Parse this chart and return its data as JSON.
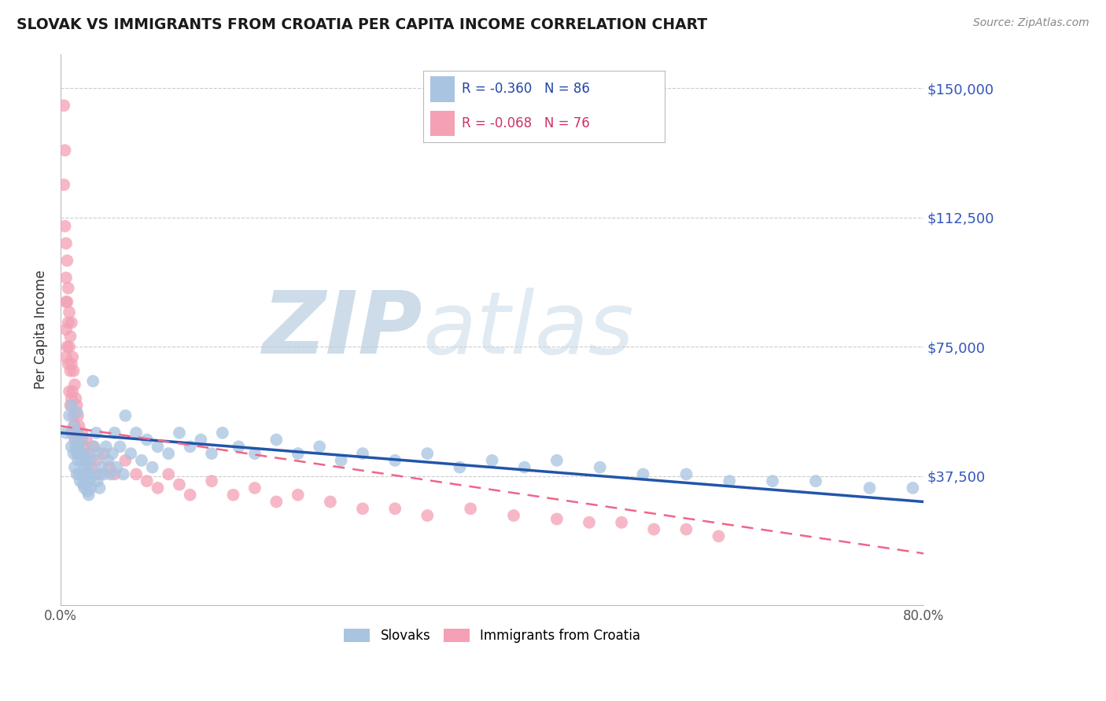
{
  "title": "SLOVAK VS IMMIGRANTS FROM CROATIA PER CAPITA INCOME CORRELATION CHART",
  "source": "Source: ZipAtlas.com",
  "ylabel": "Per Capita Income",
  "xmin": 0.0,
  "xmax": 0.8,
  "ymin": 0,
  "ymax": 160000,
  "yticks": [
    0,
    37500,
    75000,
    112500,
    150000
  ],
  "ytick_labels": [
    "",
    "$37,500",
    "$75,000",
    "$112,500",
    "$150,000"
  ],
  "xticks": [
    0.0,
    0.1,
    0.2,
    0.3,
    0.4,
    0.5,
    0.6,
    0.7,
    0.8
  ],
  "blue_R": -0.36,
  "blue_N": 86,
  "pink_R": -0.068,
  "pink_N": 76,
  "blue_color": "#A8C4E0",
  "pink_color": "#F4A0B5",
  "trend_blue": "#2255AA",
  "trend_pink": "#EE6688",
  "watermark": "ZIPatlas",
  "watermark_color": "#C5D8EE",
  "legend_label_blue": "Slovaks",
  "legend_label_pink": "Immigrants from Croatia",
  "blue_scatter_x": [
    0.005,
    0.008,
    0.01,
    0.01,
    0.012,
    0.012,
    0.013,
    0.013,
    0.014,
    0.015,
    0.015,
    0.015,
    0.016,
    0.016,
    0.017,
    0.017,
    0.018,
    0.018,
    0.019,
    0.02,
    0.02,
    0.021,
    0.021,
    0.022,
    0.022,
    0.023,
    0.024,
    0.024,
    0.025,
    0.025,
    0.026,
    0.026,
    0.027,
    0.028,
    0.028,
    0.03,
    0.031,
    0.032,
    0.033,
    0.034,
    0.035,
    0.036,
    0.038,
    0.04,
    0.042,
    0.044,
    0.046,
    0.048,
    0.05,
    0.052,
    0.055,
    0.058,
    0.06,
    0.065,
    0.07,
    0.075,
    0.08,
    0.085,
    0.09,
    0.1,
    0.11,
    0.12,
    0.13,
    0.14,
    0.15,
    0.165,
    0.18,
    0.2,
    0.22,
    0.24,
    0.26,
    0.28,
    0.31,
    0.34,
    0.37,
    0.4,
    0.43,
    0.46,
    0.5,
    0.54,
    0.58,
    0.62,
    0.66,
    0.7,
    0.75,
    0.79
  ],
  "blue_scatter_y": [
    50000,
    55000,
    58000,
    46000,
    52000,
    44000,
    48000,
    40000,
    46000,
    56000,
    44000,
    38000,
    50000,
    42000,
    46000,
    38000,
    44000,
    36000,
    42000,
    48000,
    38000,
    44000,
    35000,
    40000,
    34000,
    38000,
    43000,
    35000,
    40000,
    33000,
    38000,
    32000,
    36000,
    42000,
    34000,
    65000,
    46000,
    38000,
    50000,
    36000,
    44000,
    34000,
    40000,
    38000,
    46000,
    42000,
    38000,
    44000,
    50000,
    40000,
    46000,
    38000,
    55000,
    44000,
    50000,
    42000,
    48000,
    40000,
    46000,
    44000,
    50000,
    46000,
    48000,
    44000,
    50000,
    46000,
    44000,
    48000,
    44000,
    46000,
    42000,
    44000,
    42000,
    44000,
    40000,
    42000,
    40000,
    42000,
    40000,
    38000,
    38000,
    36000,
    36000,
    36000,
    34000,
    34000
  ],
  "pink_scatter_x": [
    0.003,
    0.003,
    0.004,
    0.004,
    0.005,
    0.005,
    0.005,
    0.005,
    0.005,
    0.006,
    0.006,
    0.006,
    0.007,
    0.007,
    0.007,
    0.008,
    0.008,
    0.008,
    0.009,
    0.009,
    0.009,
    0.01,
    0.01,
    0.01,
    0.01,
    0.011,
    0.011,
    0.012,
    0.012,
    0.013,
    0.013,
    0.014,
    0.014,
    0.015,
    0.015,
    0.016,
    0.016,
    0.017,
    0.018,
    0.019,
    0.02,
    0.021,
    0.022,
    0.024,
    0.026,
    0.028,
    0.03,
    0.033,
    0.036,
    0.04,
    0.045,
    0.05,
    0.06,
    0.07,
    0.08,
    0.09,
    0.1,
    0.11,
    0.12,
    0.14,
    0.16,
    0.18,
    0.2,
    0.22,
    0.25,
    0.28,
    0.31,
    0.34,
    0.38,
    0.42,
    0.46,
    0.49,
    0.52,
    0.55,
    0.58,
    0.61
  ],
  "pink_scatter_y": [
    145000,
    122000,
    132000,
    110000,
    105000,
    95000,
    88000,
    80000,
    72000,
    100000,
    88000,
    75000,
    92000,
    82000,
    70000,
    85000,
    75000,
    62000,
    78000,
    68000,
    58000,
    82000,
    70000,
    60000,
    50000,
    72000,
    62000,
    68000,
    55000,
    64000,
    52000,
    60000,
    48000,
    58000,
    46000,
    55000,
    44000,
    52000,
    48000,
    44000,
    50000,
    46000,
    42000,
    48000,
    44000,
    40000,
    46000,
    42000,
    38000,
    44000,
    40000,
    38000,
    42000,
    38000,
    36000,
    34000,
    38000,
    35000,
    32000,
    36000,
    32000,
    34000,
    30000,
    32000,
    30000,
    28000,
    28000,
    26000,
    28000,
    26000,
    25000,
    24000,
    24000,
    22000,
    22000,
    20000
  ]
}
